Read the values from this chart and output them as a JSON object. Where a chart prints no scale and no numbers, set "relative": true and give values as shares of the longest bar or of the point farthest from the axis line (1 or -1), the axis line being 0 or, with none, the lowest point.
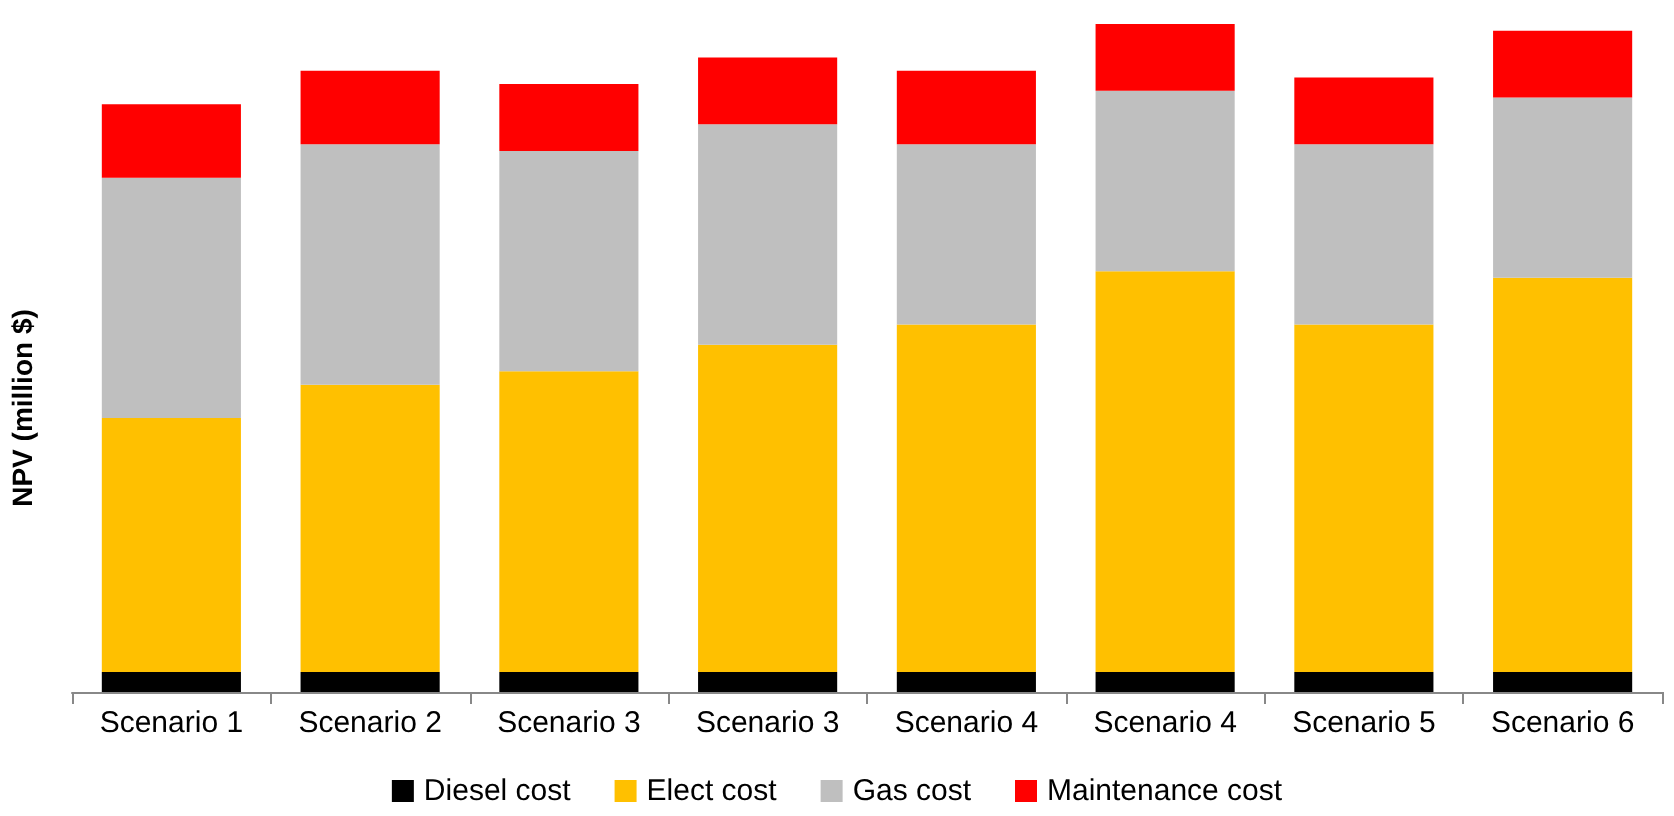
{
  "chart_data": {
    "type": "bar",
    "stacked": true,
    "relative": true,
    "ylabel": "NPV (million $)",
    "categories": [
      "Scenario 1",
      "Scenario 2",
      "Scenario 3",
      "Scenario 3",
      "Scenario 4",
      "Scenario 4",
      "Scenario 5",
      "Scenario 6"
    ],
    "series": [
      {
        "name": "Diesel cost",
        "color": "#000000",
        "values": [
          0.03,
          0.03,
          0.03,
          0.03,
          0.03,
          0.03,
          0.03,
          0.03
        ]
      },
      {
        "name": "Elect cost",
        "color": "#ffc000",
        "values": [
          0.38,
          0.43,
          0.45,
          0.49,
          0.52,
          0.6,
          0.52,
          0.59
        ]
      },
      {
        "name": "Gas cost",
        "color": "#bfbfbf",
        "values": [
          0.36,
          0.36,
          0.33,
          0.33,
          0.27,
          0.27,
          0.27,
          0.27
        ]
      },
      {
        "name": "Maintenance cost",
        "color": "#ff0000",
        "values": [
          0.11,
          0.11,
          0.1,
          0.1,
          0.11,
          0.1,
          0.1,
          0.1
        ]
      }
    ],
    "legend": "bottom"
  }
}
